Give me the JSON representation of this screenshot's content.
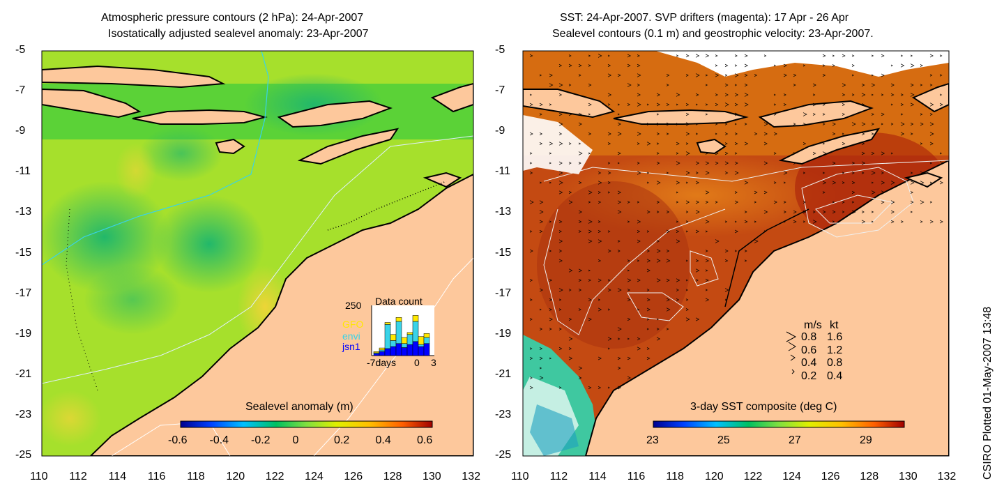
{
  "left_panel": {
    "title_line1": "Atmospheric pressure contours (2 hPa): 24-Apr-2007",
    "title_line2": "Isostatically adjusted sealevel anomaly: 23-Apr-2007",
    "y_ticks": [
      "-5",
      "-7",
      "-9",
      "-11",
      "-13",
      "-15",
      "-17",
      "-19",
      "-21",
      "-23",
      "-25"
    ],
    "x_ticks": [
      "110",
      "112",
      "114",
      "116",
      "118",
      "120",
      "122",
      "124",
      "126",
      "128",
      "130",
      "132"
    ],
    "colorbar_label": "Sealevel anomaly (m)",
    "colorbar_ticks": [
      "-0.6",
      "-0.4",
      "-0.2",
      "0",
      "0.2",
      "0.4",
      "0.6"
    ],
    "inset": {
      "title": "Data count",
      "y_max_label": "250",
      "legend": [
        {
          "name": "GFO",
          "color": "#ffe800"
        },
        {
          "name": "envi",
          "color": "#39d3e8"
        },
        {
          "name": "jsn1",
          "color": "#0000ff"
        }
      ],
      "x_labels": [
        "-7days",
        "0",
        "3"
      ],
      "bars": [
        {
          "jsn1": 10,
          "envi": 4,
          "gfo": 6
        },
        {
          "jsn1": 20,
          "envi": 8,
          "gfo": 10
        },
        {
          "jsn1": 35,
          "envi": 120,
          "gfo": 10
        },
        {
          "jsn1": 45,
          "envi": 30,
          "gfo": 30
        },
        {
          "jsn1": 60,
          "envi": 110,
          "gfo": 20
        },
        {
          "jsn1": 40,
          "envi": 20,
          "gfo": 30
        },
        {
          "jsn1": 55,
          "envi": 50,
          "gfo": 10
        },
        {
          "jsn1": 70,
          "envi": 100,
          "gfo": 30
        },
        {
          "jsn1": 45,
          "envi": 10,
          "gfo": 40
        },
        {
          "jsn1": 60,
          "envi": 30,
          "gfo": 20
        }
      ]
    }
  },
  "right_panel": {
    "title_line1": "SST: 24-Apr-2007. SVP drifters (magenta): 17 Apr - 26 Apr",
    "title_line2": "Sealevel contours (0.1 m) and geostrophic velocity: 23-Apr-2007.",
    "y_ticks": [
      "-5",
      "-7",
      "-9",
      "-11",
      "-13",
      "-15",
      "-17",
      "-19",
      "-21",
      "-23",
      "-25"
    ],
    "x_ticks": [
      "110",
      "112",
      "114",
      "116",
      "118",
      "120",
      "122",
      "124",
      "126",
      "128",
      "130",
      "132"
    ],
    "colorbar_label": "3-day SST composite (deg C)",
    "colorbar_ticks": [
      "23",
      "25",
      "27",
      "29"
    ],
    "velocity_legend": {
      "header_ms": "m/s",
      "header_kt": "kt",
      "rows": [
        {
          "ms": "0.8",
          "kt": "1.6"
        },
        {
          "ms": "0.6",
          "kt": "1.2"
        },
        {
          "ms": "0.4",
          "kt": "0.8"
        },
        {
          "ms": "0.2",
          "kt": "0.4"
        }
      ]
    }
  },
  "credit": "CSIRO Plotted 01-May-2007 13:48",
  "colors": {
    "land": "#fdc89c",
    "sla_background": "#a6e02c",
    "sst_background": "#c44a12",
    "coast": "#000000"
  }
}
